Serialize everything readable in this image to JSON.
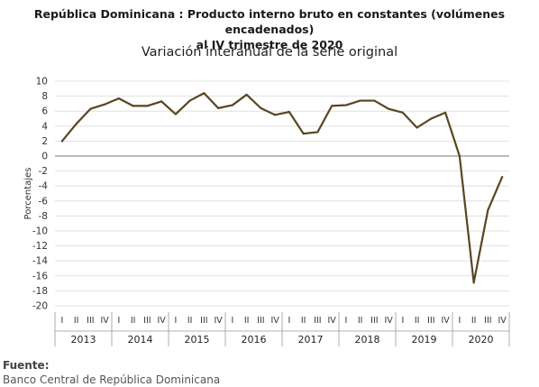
{
  "chart_data": {
    "type": "line",
    "title": "República Dominicana : Producto interno bruto en constantes (volúmenes encadenados) al IV trimestre de 2020",
    "title_lines": [
      "República Dominicana : Producto interno bruto en constantes (volúmenes encadenados)",
      "al IV trimestre de 2020"
    ],
    "subtitle": "Variación interanual de la serie original",
    "ylabel": "Porcentajes",
    "xlabel": "",
    "ylim": [
      -20,
      10
    ],
    "yticks": [
      10,
      8,
      6,
      4,
      2,
      0,
      -2,
      -4,
      -6,
      -8,
      -10,
      -12,
      -14,
      -16,
      -18,
      -20
    ],
    "quarters": [
      "I",
      "II",
      "III",
      "IV"
    ],
    "years": [
      "2013",
      "2014",
      "2015",
      "2016",
      "2017",
      "2018",
      "2019",
      "2020"
    ],
    "grid": true,
    "line_color": "#5a4523",
    "series": [
      {
        "values": [
          2.0,
          4.3,
          6.3,
          6.9,
          7.7,
          6.7,
          6.7,
          7.3,
          5.6,
          7.4,
          8.4,
          6.4,
          6.8,
          8.2,
          6.4,
          5.5,
          5.9,
          3.0,
          3.2,
          6.7,
          6.8,
          7.4,
          7.4,
          6.3,
          5.8,
          3.8,
          5.0,
          5.8,
          0.0,
          -16.9,
          -7.2,
          -2.8
        ]
      }
    ]
  },
  "source": {
    "heading": "Fuente:",
    "text": "Banco Central de República Dominicana"
  }
}
